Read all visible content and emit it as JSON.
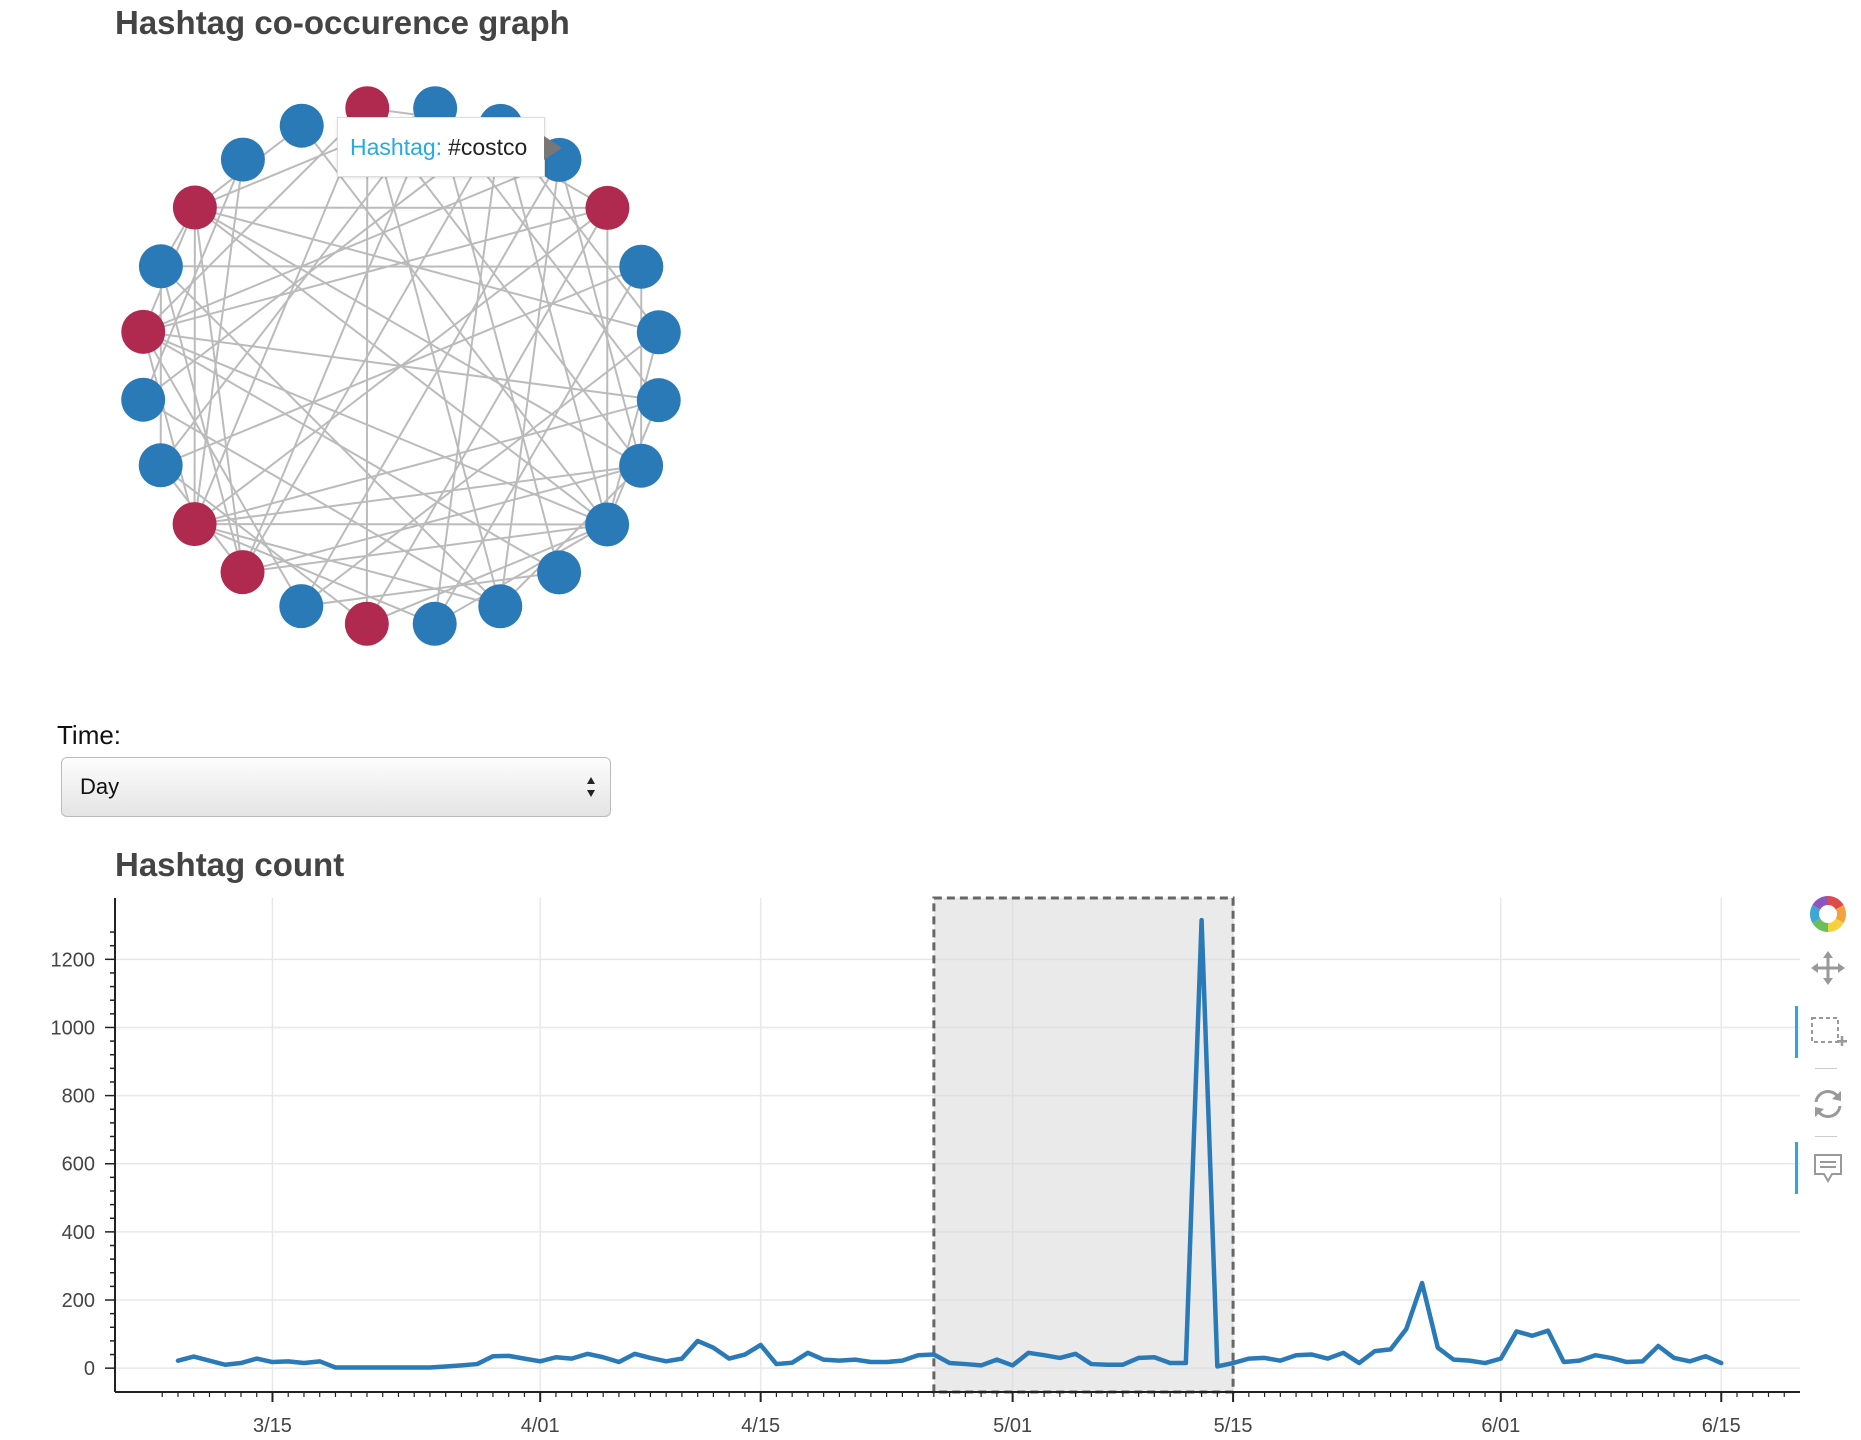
{
  "graph": {
    "title": "Hashtag co-occurence graph",
    "node_colors": {
      "blue": "#2a7ab8",
      "red": "#b02a50"
    },
    "edge_color": "#bbbbbb",
    "node_groups": [
      "red",
      "blue",
      "blue",
      "blue",
      "red",
      "blue",
      "blue",
      "blue",
      "blue",
      "blue",
      "blue",
      "blue",
      "blue",
      "red",
      "blue",
      "red",
      "red",
      "blue",
      "blue",
      "red",
      "blue",
      "red",
      "blue",
      "blue"
    ],
    "edges": [
      [
        0,
        2
      ],
      [
        0,
        8
      ],
      [
        0,
        16
      ],
      [
        0,
        13
      ],
      [
        0,
        19
      ],
      [
        0,
        11
      ],
      [
        1,
        4
      ],
      [
        1,
        10
      ],
      [
        1,
        17
      ],
      [
        1,
        15
      ],
      [
        1,
        21
      ],
      [
        1,
        7
      ],
      [
        2,
        12
      ],
      [
        2,
        15
      ],
      [
        2,
        18
      ],
      [
        2,
        6
      ],
      [
        2,
        9
      ],
      [
        3,
        8
      ],
      [
        3,
        14
      ],
      [
        3,
        19
      ],
      [
        3,
        11
      ],
      [
        4,
        21
      ],
      [
        4,
        16
      ],
      [
        4,
        9
      ],
      [
        4,
        13
      ],
      [
        4,
        19
      ],
      [
        5,
        12
      ],
      [
        5,
        17
      ],
      [
        5,
        20
      ],
      [
        5,
        8
      ],
      [
        6,
        14
      ],
      [
        6,
        9
      ],
      [
        6,
        21
      ],
      [
        7,
        9
      ],
      [
        7,
        16
      ],
      [
        7,
        19
      ],
      [
        8,
        21
      ],
      [
        8,
        16
      ],
      [
        8,
        15
      ],
      [
        8,
        11
      ],
      [
        9,
        13
      ],
      [
        9,
        15
      ],
      [
        9,
        19
      ],
      [
        9,
        21
      ],
      [
        9,
        12
      ],
      [
        9,
        16
      ],
      [
        10,
        19
      ],
      [
        10,
        14
      ],
      [
        11,
        16
      ],
      [
        11,
        20
      ],
      [
        11,
        18
      ],
      [
        12,
        16
      ],
      [
        13,
        17
      ],
      [
        15,
        17
      ],
      [
        15,
        21
      ],
      [
        15,
        20
      ],
      [
        16,
        21
      ],
      [
        16,
        19
      ],
      [
        17,
        20
      ],
      [
        18,
        22
      ],
      [
        19,
        21
      ],
      [
        19,
        14
      ],
      [
        21,
        23
      ],
      [
        20,
        21
      ],
      [
        22,
        16
      ],
      [
        23,
        9
      ]
    ],
    "tooltip": {
      "label": "Hashtag:",
      "value": "#costco"
    }
  },
  "time_filter": {
    "label": "Time:",
    "selected": "Day"
  },
  "count_chart": {
    "title": "Hashtag count",
    "toolbar": {
      "icons": [
        "bokeh-logo-icon",
        "pan-icon",
        "box-zoom-icon",
        "reset-icon",
        "hover-icon"
      ],
      "active": [
        "box-zoom-icon",
        "hover-icon"
      ]
    }
  },
  "chart_data": {
    "type": "line",
    "title": "Hashtag count",
    "xlabel": "",
    "ylabel": "",
    "x_start": "2016-03-09",
    "x_tick_labels": [
      "3/15",
      "4/01",
      "4/15",
      "5/01",
      "5/15",
      "6/01",
      "6/15"
    ],
    "x_tick_dates": [
      "2016-03-15",
      "2016-04-01",
      "2016-04-15",
      "2016-05-01",
      "2016-05-15",
      "2016-06-01",
      "2016-06-15"
    ],
    "xlim": [
      "2016-03-05",
      "2016-06-20"
    ],
    "ylim": [
      -70,
      1380
    ],
    "y_ticks": [
      0,
      200,
      400,
      600,
      800,
      1000,
      1200
    ],
    "grid": true,
    "line_color": "#2a7ab8",
    "selection_box": {
      "from": "2016-04-26",
      "to": "2016-05-15"
    },
    "series": [
      {
        "x": [
          "2016-03-09",
          "2016-03-10",
          "2016-03-11",
          "2016-03-12",
          "2016-03-13",
          "2016-03-14",
          "2016-03-15",
          "2016-03-16",
          "2016-03-17",
          "2016-03-18",
          "2016-03-19",
          "2016-03-20",
          "2016-03-21",
          "2016-03-22",
          "2016-03-23",
          "2016-03-24",
          "2016-03-25",
          "2016-03-26",
          "2016-03-27",
          "2016-03-28",
          "2016-03-29",
          "2016-03-30",
          "2016-03-31",
          "2016-04-01",
          "2016-04-02",
          "2016-04-03",
          "2016-04-04",
          "2016-04-05",
          "2016-04-06",
          "2016-04-07",
          "2016-04-08",
          "2016-04-09",
          "2016-04-10",
          "2016-04-11",
          "2016-04-12",
          "2016-04-13",
          "2016-04-14",
          "2016-04-15",
          "2016-04-16",
          "2016-04-17",
          "2016-04-18",
          "2016-04-19",
          "2016-04-20",
          "2016-04-21",
          "2016-04-22",
          "2016-04-23",
          "2016-04-24",
          "2016-04-25",
          "2016-04-26",
          "2016-04-27",
          "2016-04-28",
          "2016-04-29",
          "2016-04-30",
          "2016-05-01",
          "2016-05-02",
          "2016-05-03",
          "2016-05-04",
          "2016-05-05",
          "2016-05-06",
          "2016-05-07",
          "2016-05-08",
          "2016-05-09",
          "2016-05-10",
          "2016-05-11",
          "2016-05-12",
          "2016-05-13",
          "2016-05-14",
          "2016-05-15",
          "2016-05-16",
          "2016-05-17",
          "2016-05-18",
          "2016-05-19",
          "2016-05-20",
          "2016-05-21",
          "2016-05-22",
          "2016-05-23",
          "2016-05-24",
          "2016-05-25",
          "2016-05-26",
          "2016-05-27",
          "2016-05-28",
          "2016-05-29",
          "2016-05-30",
          "2016-05-31",
          "2016-06-01",
          "2016-06-02",
          "2016-06-03",
          "2016-06-04",
          "2016-06-05",
          "2016-06-06",
          "2016-06-07",
          "2016-06-08",
          "2016-06-09",
          "2016-06-10",
          "2016-06-11",
          "2016-06-12",
          "2016-06-13",
          "2016-06-14",
          "2016-06-15"
        ],
        "y": [
          22,
          34,
          22,
          10,
          15,
          28,
          18,
          20,
          15,
          20,
          2,
          2,
          2,
          2,
          2,
          2,
          2,
          5,
          8,
          12,
          35,
          36,
          28,
          20,
          32,
          28,
          42,
          32,
          18,
          42,
          30,
          20,
          28,
          80,
          60,
          28,
          40,
          68,
          12,
          16,
          45,
          25,
          22,
          25,
          18,
          18,
          22,
          38,
          40,
          15,
          12,
          8,
          25,
          8,
          45,
          38,
          30,
          42,
          12,
          10,
          10,
          30,
          32,
          15,
          15,
          1315,
          5,
          15,
          28,
          30,
          22,
          38,
          40,
          28,
          45,
          15,
          50,
          55,
          115,
          250,
          60,
          25,
          22,
          15,
          28,
          108,
          95,
          110,
          18,
          22,
          38,
          30,
          18,
          20,
          65,
          30,
          20,
          35,
          15
        ]
      }
    ]
  }
}
